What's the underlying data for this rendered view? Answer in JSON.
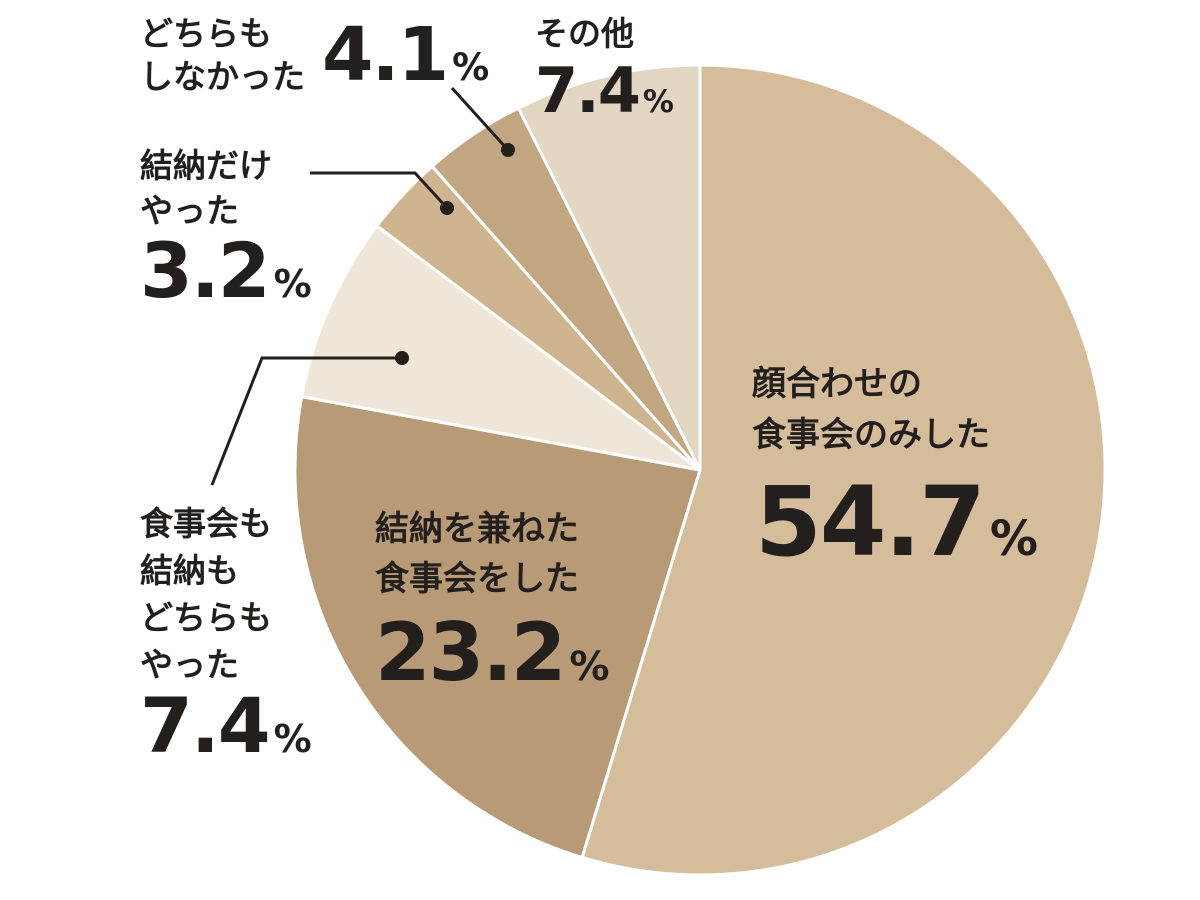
{
  "chart_data": {
    "type": "pie",
    "unit": "%",
    "slices": [
      {
        "name_lines": [
          "顔合わせの",
          "食事会のみした"
        ],
        "value": 54.7,
        "value_text": "54.7",
        "color": "#d5bd9c"
      },
      {
        "name_lines": [
          "結納を兼ねた",
          "食事会をした"
        ],
        "value": 23.2,
        "value_text": "23.2",
        "color": "#b99a76"
      },
      {
        "name_lines": [
          "食事会も",
          "結納も",
          "どちらも",
          "やった"
        ],
        "value": 7.4,
        "value_text": "7.4",
        "color": "#efe6da"
      },
      {
        "name_lines": [
          "結納だけ",
          "やった"
        ],
        "value": 3.2,
        "value_text": "3.2",
        "color": "#cfb490"
      },
      {
        "name_lines": [
          "どちらも",
          "しなかった"
        ],
        "value": 4.1,
        "value_text": "4.1",
        "color": "#c2a681"
      },
      {
        "name_lines": [
          "その他"
        ],
        "value": 7.4,
        "value_text": "7.4",
        "color": "#e3d6c3"
      }
    ]
  }
}
